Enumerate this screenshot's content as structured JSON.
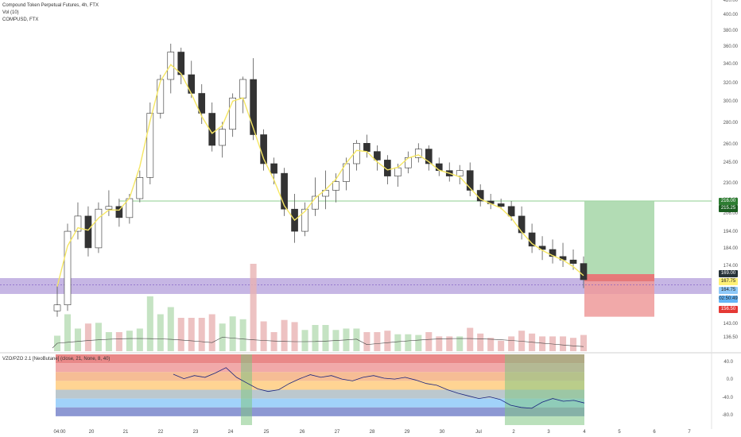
{
  "panel": {
    "symbol_title": "Compound Token Perpetual Futures, 4h, FTX",
    "volume_label": "Vol (10)",
    "overlay_label": "COMPUSD, FTX",
    "indicator_label": "VZO/PZO 2.1 [NeoButane] (close, 21, None, 8, 40)"
  },
  "price_axis": [
    "420.00",
    "400.00",
    "380.00",
    "360.00",
    "340.00",
    "320.00",
    "300.00",
    "280.00",
    "260.00",
    "245.00",
    "230.00",
    "216.00",
    "206.00",
    "194.00",
    "184.00",
    "174.00",
    "143.00",
    "136.50"
  ],
  "osc_axis": [
    "40.0",
    "0.0",
    "-40.0",
    "-80.0"
  ],
  "time_axis": [
    "04:00",
    "20",
    "21",
    "22",
    "23",
    "24",
    "25",
    "26",
    "27",
    "28",
    "29",
    "30",
    "Jul",
    "2",
    "3",
    "4",
    "5",
    "6",
    "7"
  ],
  "price_boxes": [
    {
      "value": "216.00",
      "bg": "#2e7d32",
      "fg": "#ffffff"
    },
    {
      "value": "215.25",
      "bg": "#1b5e20",
      "fg": "#ffffff"
    },
    {
      "value": "169.00",
      "bg": "#263238",
      "fg": "#ffffff"
    },
    {
      "value": "167.75",
      "bg": "#fff176",
      "fg": "#222222"
    },
    {
      "value": "164.75",
      "bg": "#90caf9",
      "fg": "#222222"
    },
    {
      "value": "02:50:49",
      "bg": "#64b5f6",
      "fg": "#222222"
    },
    {
      "value": "156.50",
      "bg": "#e53935",
      "fg": "#ffffff"
    }
  ],
  "colors": {
    "up": "#ffffff",
    "down": "#333333",
    "wick": "#555555",
    "ma_line": "#f5e663",
    "vol_up": "#b7dcb4",
    "vol_down": "#e8b3b3",
    "target_zone": "#a5d6a7",
    "stop_zone": "#ef9a9a",
    "support_zone": "#b39ddb",
    "resistance_line": "#66bb6a"
  },
  "chart_data": [
    {
      "type": "candlestick",
      "title": "Compound Token Perpetual Futures, 4h, FTX",
      "x": [
        "04:00",
        "20",
        "21",
        "22",
        "23",
        "24",
        "25",
        "26",
        "27",
        "28",
        "29",
        "30",
        "Jul",
        "2",
        "3",
        "4"
      ],
      "ylim": [
        136.5,
        420
      ],
      "candles": [
        [
          155,
          165,
          150,
          158
        ],
        [
          158,
          200,
          155,
          195
        ],
        [
          195,
          215,
          190,
          205
        ],
        [
          205,
          212,
          180,
          185
        ],
        [
          185,
          215,
          182,
          210
        ],
        [
          210,
          225,
          205,
          212
        ],
        [
          212,
          218,
          198,
          204
        ],
        [
          204,
          222,
          200,
          218
        ],
        [
          218,
          240,
          215,
          235
        ],
        [
          235,
          300,
          230,
          290
        ],
        [
          290,
          330,
          285,
          325
        ],
        [
          325,
          365,
          310,
          355
        ],
        [
          355,
          360,
          320,
          330
        ],
        [
          330,
          345,
          305,
          310
        ],
        [
          310,
          320,
          280,
          290
        ],
        [
          290,
          300,
          255,
          260
        ],
        [
          260,
          282,
          250,
          275
        ],
        [
          275,
          310,
          268,
          305
        ],
        [
          305,
          328,
          290,
          325
        ],
        [
          325,
          348,
          265,
          270
        ],
        [
          270,
          275,
          240,
          245
        ],
        [
          245,
          250,
          230,
          238
        ],
        [
          238,
          242,
          205,
          210
        ],
        [
          210,
          222,
          188,
          195
        ],
        [
          195,
          215,
          192,
          210
        ],
        [
          210,
          235,
          205,
          220
        ],
        [
          220,
          240,
          210,
          225
        ],
        [
          225,
          238,
          215,
          232
        ],
        [
          232,
          250,
          225,
          245
        ],
        [
          245,
          265,
          240,
          262
        ],
        [
          262,
          270,
          250,
          255
        ],
        [
          255,
          260,
          240,
          248
        ],
        [
          248,
          252,
          230,
          236
        ],
        [
          236,
          245,
          228,
          242
        ],
        [
          242,
          255,
          238,
          250
        ],
        [
          250,
          262,
          246,
          257
        ],
        [
          257,
          260,
          240,
          245
        ],
        [
          245,
          250,
          236,
          240
        ],
        [
          240,
          246,
          232,
          236
        ],
        [
          236,
          244,
          230,
          240
        ],
        [
          240,
          246,
          220,
          225
        ],
        [
          225,
          230,
          212,
          216
        ],
        [
          216,
          222,
          210,
          214
        ],
        [
          214,
          218,
          210,
          212
        ],
        [
          212,
          216,
          202,
          205
        ],
        [
          205,
          212,
          190,
          194
        ],
        [
          194,
          200,
          182,
          186
        ],
        [
          186,
          192,
          178,
          184
        ],
        [
          184,
          190,
          176,
          180
        ],
        [
          180,
          188,
          174,
          178
        ],
        [
          178,
          184,
          172,
          176
        ],
        [
          176,
          180,
          164,
          167
        ]
      ],
      "target_zone": [
        169,
        216
      ],
      "stop_zone": [
        150,
        169
      ],
      "support_zone": [
        164.75,
        174
      ],
      "resistance_level": 216,
      "oscillator": {
        "name": "VZO/PZO 2.1",
        "levels": [
          60,
          40,
          20,
          0,
          -20,
          -40,
          -60
        ],
        "ylim": [
          -100,
          60
        ],
        "values": [
          15,
          5,
          12,
          8,
          18,
          30,
          8,
          -5,
          -18,
          -24,
          -20,
          -6,
          5,
          14,
          8,
          12,
          4,
          0,
          8,
          12,
          6,
          4,
          8,
          2,
          -6,
          -10,
          -20,
          -28,
          -34,
          -40,
          -36,
          -42,
          -55,
          -60,
          -62,
          -48,
          -40,
          -46,
          -44,
          -50
        ]
      }
    }
  ]
}
